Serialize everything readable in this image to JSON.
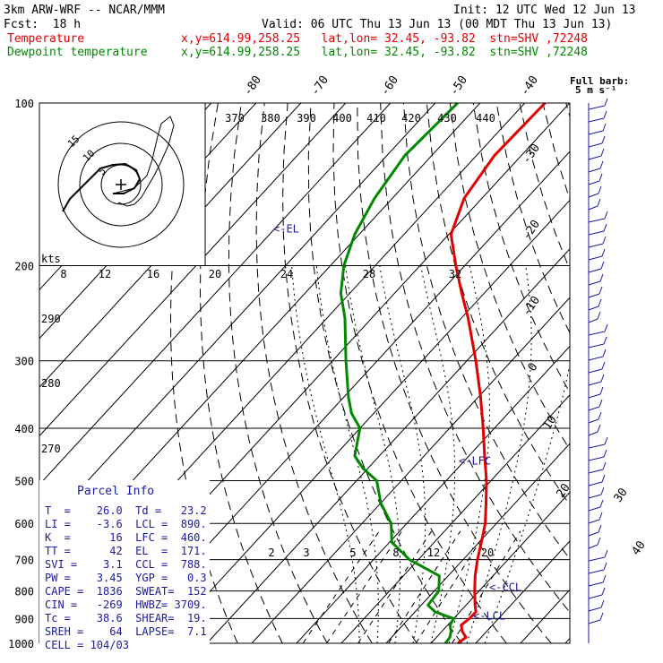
{
  "header": {
    "model": "3km ARW-WRF -- NCAR/MMM",
    "init": "Init: 12 UTC Wed 12 Jun 13",
    "fcst": "Fcst:  18 h",
    "valid": "Valid: 06 UTC Thu 13 Jun 13 (00 MDT Thu 13 Jun 13)",
    "temp_label": "Temperature",
    "temp_info": "x,y=614.99,258.25   lat,lon= 32.45, -93.82  stn=SHV ,72248",
    "dew_label": "Dewpoint temperature",
    "dew_info": "x,y=614.99,258.25   lat,lon= 32.45, -93.82  stn=SHV ,72248"
  },
  "colors": {
    "temperature": "#e00000",
    "dewpoint": "#008800",
    "barbs": "#1a1aa0",
    "grid": "#000000"
  },
  "chart_data": {
    "type": "line",
    "pressure_levels": [
      100,
      200,
      300,
      400,
      500,
      600,
      700,
      800,
      900,
      1000
    ],
    "skewed_isotherm_labels": [
      "-80",
      "-70",
      "-60",
      "-50",
      "-40",
      "-30",
      "-20",
      "-10",
      "0",
      "10",
      "20",
      "30",
      "40"
    ],
    "theta_labels": [
      "370",
      "380",
      "390",
      "400",
      "410",
      "420",
      "430",
      "440"
    ],
    "hodograph_speed_labels": [
      "8",
      "12",
      "16",
      "20",
      "24",
      "28",
      "32"
    ],
    "hodograph_units": "kts",
    "hodograph_rings": [
      "5",
      "10",
      "15"
    ],
    "adiabat_labels": [
      "290",
      "280",
      "270"
    ],
    "mixing_ratio_labels": [
      "2",
      "3",
      "5",
      "8",
      "12",
      "20"
    ],
    "barb_legend": "Full barb:\n5 m s-1",
    "barb_legend_line1": "Full barb:",
    "barb_legend_line2": "5 m s⁻¹",
    "series": [
      {
        "name": "Temperature",
        "color": "#e00000",
        "points": [
          {
            "p": 1000,
            "t": 26.0
          },
          {
            "p": 975,
            "t": 26.6
          },
          {
            "p": 950,
            "t": 24.5
          },
          {
            "p": 925,
            "t": 23.0
          },
          {
            "p": 900,
            "t": 23.5
          },
          {
            "p": 875,
            "t": 23.6
          },
          {
            "p": 850,
            "t": 22.0
          },
          {
            "p": 800,
            "t": 19.0
          },
          {
            "p": 750,
            "t": 16.0
          },
          {
            "p": 700,
            "t": 13.2
          },
          {
            "p": 650,
            "t": 10.5
          },
          {
            "p": 600,
            "t": 7.5
          },
          {
            "p": 550,
            "t": 3.5
          },
          {
            "p": 500,
            "t": -1.0
          },
          {
            "p": 450,
            "t": -6.5
          },
          {
            "p": 400,
            "t": -12.5
          },
          {
            "p": 350,
            "t": -19.5
          },
          {
            "p": 300,
            "t": -28.0
          },
          {
            "p": 250,
            "t": -38.5
          },
          {
            "p": 225,
            "t": -45.0
          },
          {
            "p": 200,
            "t": -52.0
          },
          {
            "p": 175,
            "t": -59.5
          },
          {
            "p": 150,
            "t": -64.0
          },
          {
            "p": 125,
            "t": -66.0
          },
          {
            "p": 100,
            "t": -65.5
          }
        ]
      },
      {
        "name": "Dewpoint temperature",
        "color": "#008800",
        "points": [
          {
            "p": 1000,
            "t": 23.2
          },
          {
            "p": 975,
            "t": 23.0
          },
          {
            "p": 950,
            "t": 22.0
          },
          {
            "p": 925,
            "t": 20.5
          },
          {
            "p": 900,
            "t": 20.0
          },
          {
            "p": 875,
            "t": 14.5
          },
          {
            "p": 850,
            "t": 11.5
          },
          {
            "p": 800,
            "t": 11.0
          },
          {
            "p": 750,
            "t": 8.0
          },
          {
            "p": 700,
            "t": -2.0
          },
          {
            "p": 650,
            "t": -9.5
          },
          {
            "p": 600,
            "t": -13.5
          },
          {
            "p": 550,
            "t": -20.0
          },
          {
            "p": 500,
            "t": -25.5
          },
          {
            "p": 475,
            "t": -31.0
          },
          {
            "p": 450,
            "t": -35.5
          },
          {
            "p": 400,
            "t": -40.0
          },
          {
            "p": 375,
            "t": -45.0
          },
          {
            "p": 350,
            "t": -49.0
          },
          {
            "p": 300,
            "t": -57.0
          },
          {
            "p": 250,
            "t": -66.0
          },
          {
            "p": 225,
            "t": -72.0
          },
          {
            "p": 200,
            "t": -77.0
          },
          {
            "p": 175,
            "t": -81.0
          },
          {
            "p": 150,
            "t": -84.0
          },
          {
            "p": 125,
            "t": -86.0
          },
          {
            "p": 100,
            "t": -85.0
          }
        ]
      }
    ],
    "levels_marked": [
      {
        "label": "<-EL",
        "p": 171
      },
      {
        "label": "<-LFC",
        "p": 460
      },
      {
        "label": "<-CCL",
        "p": 788
      },
      {
        "label": "<-LCL",
        "p": 890
      }
    ]
  },
  "parcel_info": {
    "title": "Parcel Info",
    "rows": [
      "T  =    26.0  Td =   23.2",
      "LI =    -3.6  LCL =  890.",
      "K  =      16  LFC =  460.",
      "TT =      42  EL  =  171.",
      "SVI =    3.1  CCL =  788.",
      "PW =    3.45  YGP =   0.3",
      "CAPE =  1836  SWEAT=  152",
      "CIN =   -269  HWBZ= 3709.",
      "Tc =    38.6  SHEAR=  19.",
      "SREH =    64  LAPSE=  7.1",
      "CELL = 104/03"
    ]
  }
}
